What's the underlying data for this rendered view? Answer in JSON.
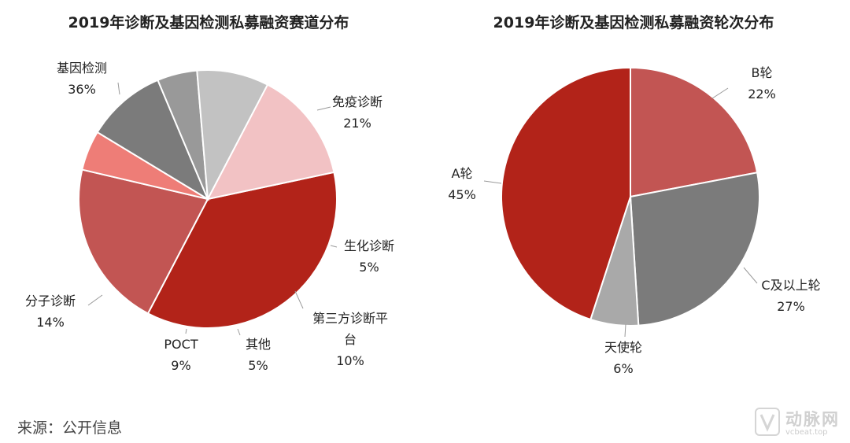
{
  "charts": {
    "left": {
      "title": "2019年诊断及基因检测私募融资赛道分布"
    },
    "right": {
      "title": "2019年诊断及基因检测私募融资轮次分布"
    }
  },
  "source": "来源：公开信息",
  "watermark": {
    "name": "动脉网",
    "url": "vcbeat.top"
  },
  "chart_data": [
    {
      "type": "pie",
      "title": "2019年诊断及基因检测私募融资赛道分布",
      "slices": [
        {
          "label": "基因检测",
          "value": 36,
          "value_label": "36%",
          "color": "#b22319"
        },
        {
          "label": "免疫诊断",
          "value": 21,
          "value_label": "21%",
          "color": "#c25553"
        },
        {
          "label": "生化诊断",
          "value": 5,
          "value_label": "5%",
          "color": "#ee7d77"
        },
        {
          "label": "第三方诊断平台",
          "value": 10,
          "value_label": "10%",
          "color": "#7b7b7b"
        },
        {
          "label": "其他",
          "value": 5,
          "value_label": "5%",
          "color": "#999999"
        },
        {
          "label": "POCT",
          "value": 9,
          "value_label": "9%",
          "color": "#c2c2c2"
        },
        {
          "label": "分子诊断",
          "value": 14,
          "value_label": "14%",
          "color": "#f2c2c4"
        }
      ]
    },
    {
      "type": "pie",
      "title": "2019年诊断及基因检测私募融资轮次分布",
      "slices": [
        {
          "label": "B轮",
          "value": 22,
          "value_label": "22%",
          "color": "#c25553"
        },
        {
          "label": "C及以上轮",
          "value": 27,
          "value_label": "27%",
          "color": "#7b7b7b"
        },
        {
          "label": "天使轮",
          "value": 6,
          "value_label": "6%",
          "color": "#a9a9a9"
        },
        {
          "label": "A轮",
          "value": 45,
          "value_label": "45%",
          "color": "#b22319"
        }
      ]
    }
  ]
}
